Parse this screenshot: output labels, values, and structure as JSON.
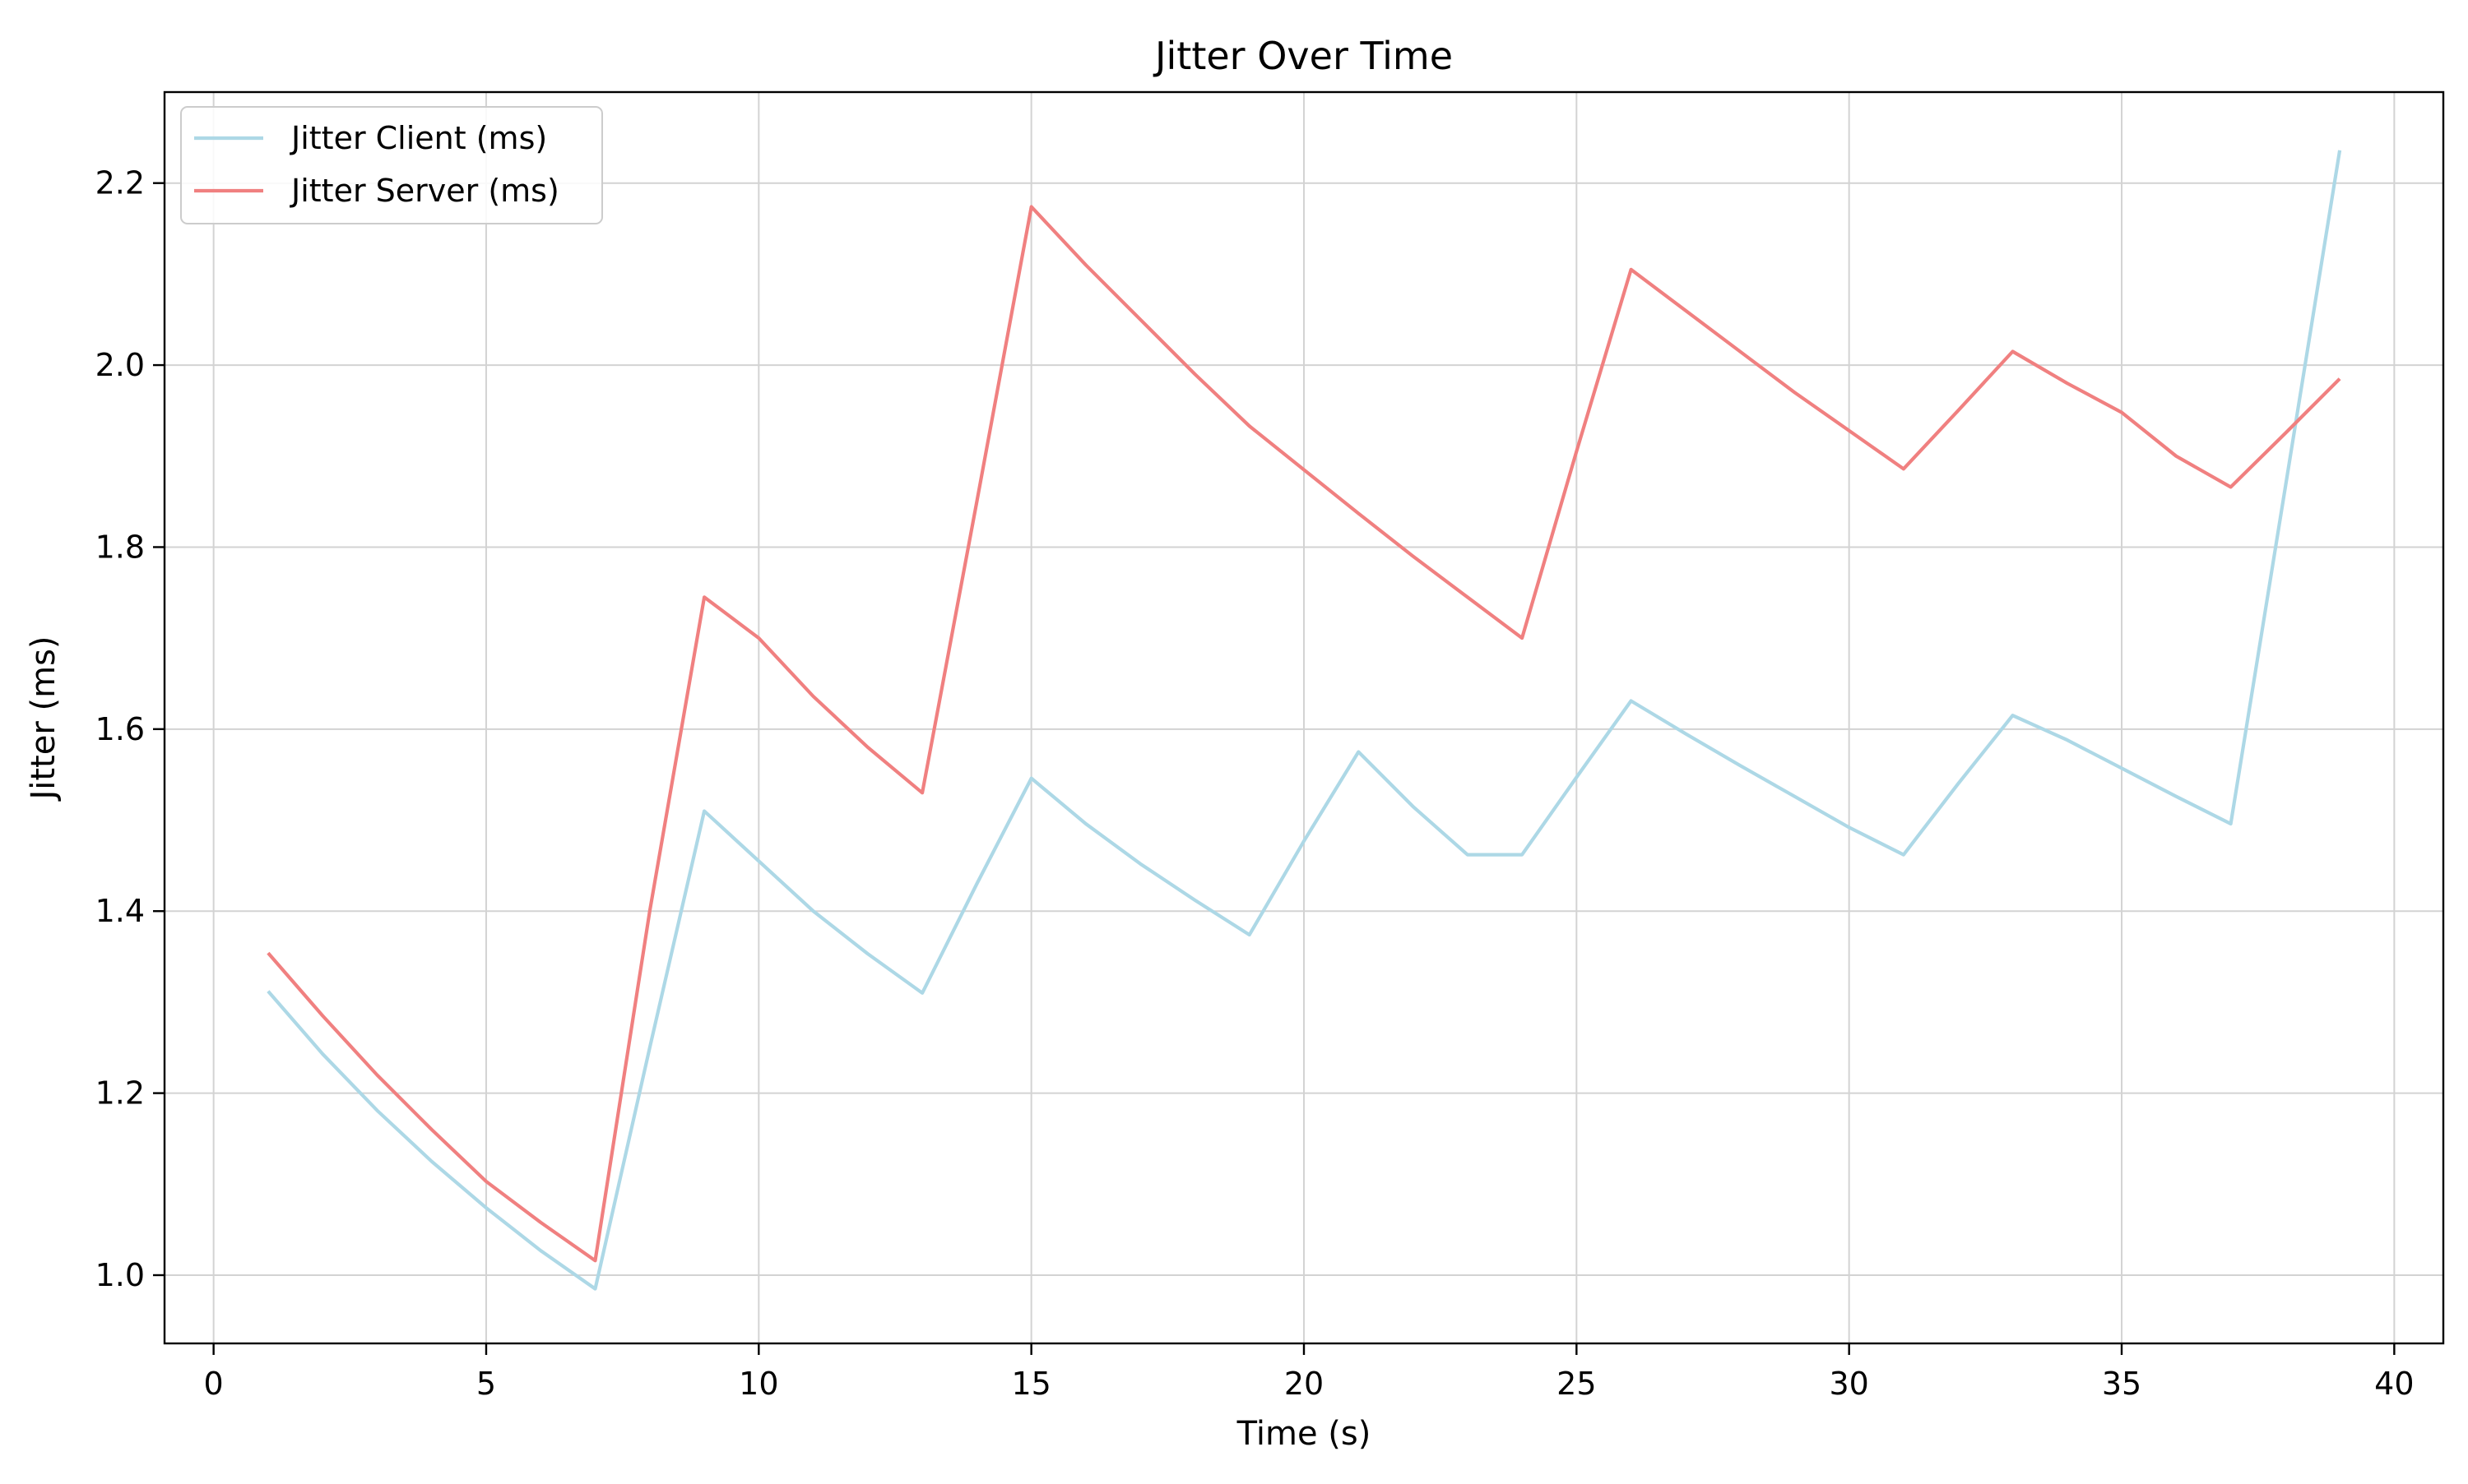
{
  "chart_data": {
    "type": "line",
    "title": "Jitter Over Time",
    "xlabel": "Time (s)",
    "ylabel": "Jitter (ms)",
    "xlim": [
      -0.9,
      40.9
    ],
    "ylim": [
      0.925,
      2.3
    ],
    "xticks": [
      0,
      5,
      10,
      15,
      20,
      25,
      30,
      35,
      40
    ],
    "yticks": [
      1.0,
      1.2,
      1.4,
      1.6,
      1.8,
      2.0,
      2.2
    ],
    "xtick_labels": [
      "0",
      "5",
      "10",
      "15",
      "20",
      "25",
      "30",
      "35",
      "40"
    ],
    "ytick_labels": [
      "1.0",
      "1.2",
      "1.4",
      "1.6",
      "1.8",
      "2.0",
      "2.2"
    ],
    "grid": true,
    "legend_position": "top-left",
    "x": [
      1,
      2,
      3,
      4,
      5,
      6,
      7,
      8,
      9,
      10,
      11,
      12,
      13,
      14,
      15,
      16,
      17,
      18,
      19,
      20,
      21,
      22,
      23,
      24,
      25,
      26,
      27,
      28,
      29,
      30,
      31,
      32,
      33,
      34,
      35,
      36,
      37,
      38,
      39
    ],
    "series": [
      {
        "name": "Jitter Client (ms)",
        "color": "#add8e6",
        "values": [
          1.312,
          1.243,
          1.181,
          1.125,
          1.074,
          1.027,
          0.985,
          1.25,
          1.51,
          1.455,
          1.4,
          1.353,
          1.31,
          1.43,
          1.546,
          1.496,
          1.452,
          1.412,
          1.374,
          1.477,
          1.575,
          1.515,
          1.462,
          1.462,
          1.547,
          1.631,
          1.595,
          1.56,
          1.526,
          1.492,
          1.462,
          1.54,
          1.615,
          1.588,
          1.557,
          1.526,
          1.496,
          1.865,
          2.236
        ]
      },
      {
        "name": "Jitter Server (ms)",
        "color": "#f08080",
        "values": [
          1.354,
          1.285,
          1.22,
          1.16,
          1.103,
          1.058,
          1.016,
          1.4,
          1.745,
          1.7,
          1.636,
          1.58,
          1.53,
          1.85,
          2.174,
          2.11,
          2.05,
          1.99,
          1.933,
          1.885,
          1.837,
          1.79,
          1.745,
          1.7,
          1.905,
          2.105,
          2.06,
          2.015,
          1.97,
          1.928,
          1.886,
          1.95,
          2.015,
          1.98,
          1.948,
          1.9,
          1.866,
          1.925,
          1.985
        ]
      }
    ]
  }
}
